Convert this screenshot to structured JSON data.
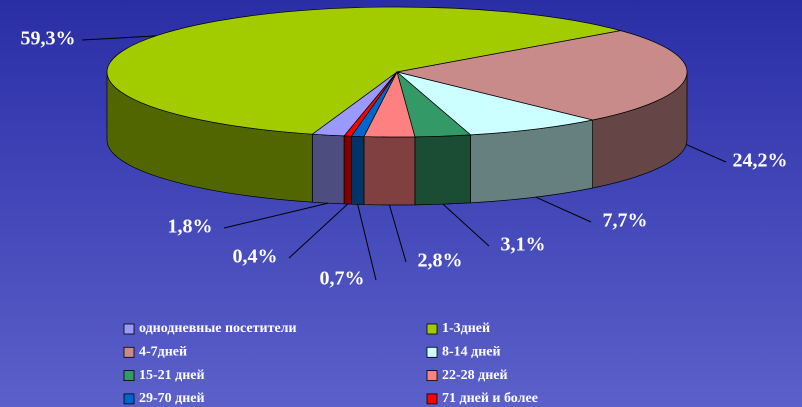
{
  "chart_data": {
    "type": "pie",
    "categories": [
      "однодневные посетители",
      "1-3дней",
      "4-7дней",
      "8-14 дней",
      "15-21 дней",
      "22-28 дней",
      "29-70 дней",
      "71 дней и более"
    ],
    "values": [
      1.8,
      59.3,
      24.2,
      7.7,
      3.1,
      2.8,
      0.7,
      0.4
    ],
    "value_labels": [
      "1,8%",
      "59,3%",
      "24,2%",
      "7,7%",
      "3,1%",
      "2,8%",
      "0,7%",
      "0,4%"
    ],
    "colors": [
      "#9999ff",
      "#a3cc00",
      "#c98a8a",
      "#ccffff",
      "#339966",
      "#ff8080",
      "#0066cc",
      "#ff0000"
    ],
    "legend": "bottom"
  }
}
